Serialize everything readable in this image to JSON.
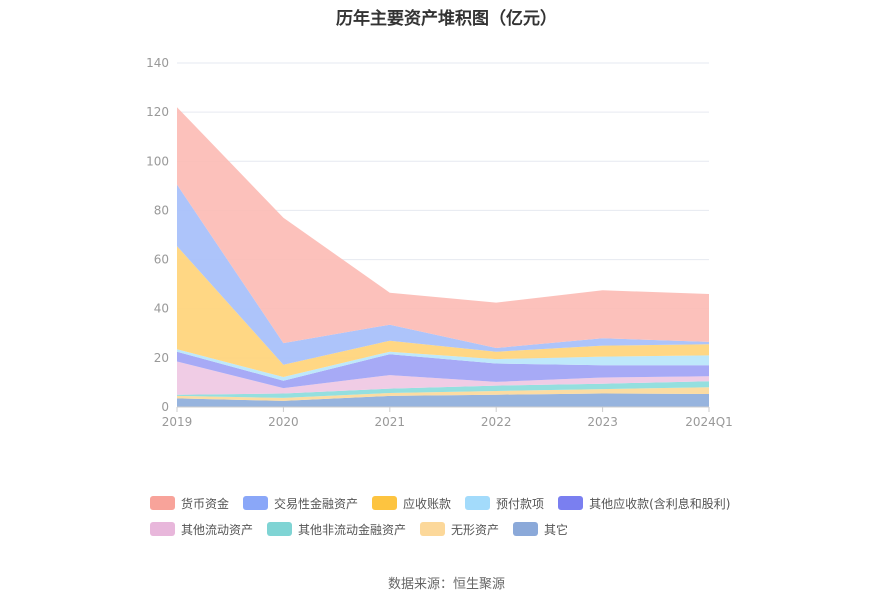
{
  "chart_data": {
    "type": "area",
    "stacked": true,
    "title": "历年主要资产堆积图（亿元）",
    "x": [
      "2019",
      "2020",
      "2021",
      "2022",
      "2023",
      "2024Q1"
    ],
    "ylim": [
      0,
      140
    ],
    "yticks": [
      0,
      20,
      40,
      60,
      80,
      100,
      120,
      140
    ],
    "grid": true,
    "legend_position": "bottom",
    "series": [
      {
        "name": "其它",
        "color": "#8eaedb",
        "values": [
          3.5,
          2.5,
          4.5,
          5.0,
          5.5,
          5.3
        ]
      },
      {
        "name": "无形资产",
        "color": "#fcd99a",
        "values": [
          1.0,
          1.2,
          1.2,
          1.5,
          1.8,
          2.7
        ]
      },
      {
        "name": "其他非流动金融资产",
        "color": "#8bdcdc",
        "values": [
          0.5,
          1.8,
          1.8,
          2.2,
          2.2,
          2.5
        ]
      },
      {
        "name": "其他流动资产",
        "color": "#efc8e3",
        "values": [
          13.5,
          2.2,
          5.5,
          1.5,
          2.5,
          2.0
        ]
      },
      {
        "name": "其他应收款(含利息和股利)",
        "color": "#a0a3f5",
        "values": [
          4.0,
          3.0,
          8.5,
          7.5,
          5.0,
          4.5
        ]
      },
      {
        "name": "预付款项",
        "color": "#b8e6fb",
        "values": [
          1.0,
          1.5,
          1.0,
          1.8,
          3.5,
          4.0
        ]
      },
      {
        "name": "应收账款",
        "color": "#ffd479",
        "values": [
          42.0,
          5.0,
          4.5,
          3.0,
          4.5,
          4.5
        ]
      },
      {
        "name": "交易性金融资产",
        "color": "#a6bffa",
        "values": [
          25.0,
          8.8,
          6.5,
          1.5,
          3.0,
          1.0
        ]
      },
      {
        "name": "货币资金",
        "color": "#fcbcb5",
        "values": [
          31.5,
          51.0,
          13.0,
          18.5,
          19.5,
          19.5
        ]
      }
    ]
  },
  "legend": [
    {
      "label": "货币资金",
      "color": "#f8a39a"
    },
    {
      "label": "交易性金融资产",
      "color": "#8aa7f8"
    },
    {
      "label": "应收账款",
      "color": "#fdc440"
    },
    {
      "label": "预付款项",
      "color": "#a3dbfb"
    },
    {
      "label": "其他应收款(含利息和股利)",
      "color": "#7a7ff0"
    },
    {
      "label": "其他流动资产",
      "color": "#e8b7db"
    },
    {
      "label": "其他非流动金融资产",
      "color": "#7fd4d4"
    },
    {
      "label": "无形资产",
      "color": "#fcd89a"
    },
    {
      "label": "其它",
      "color": "#8ba9d9"
    }
  ],
  "source": "数据来源：恒生聚源"
}
